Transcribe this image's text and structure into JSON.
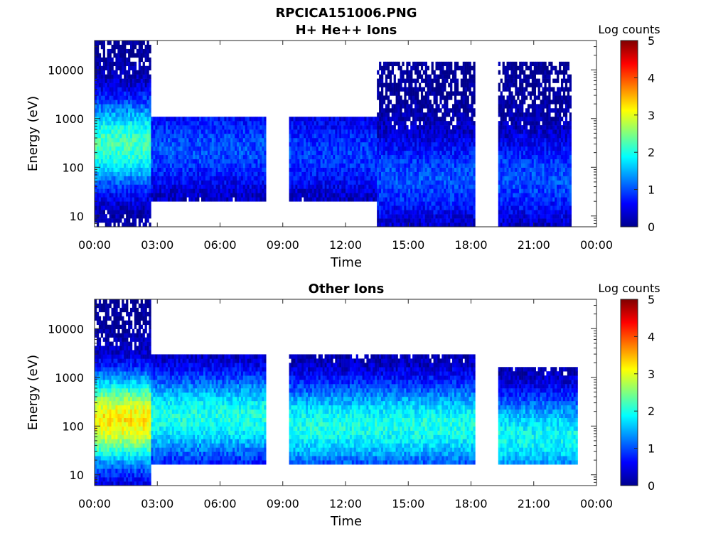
{
  "figure": {
    "title_line1": "RPCICA151006.PNG"
  },
  "chart_data": [
    {
      "type": "heatmap",
      "title": "H+ He++ Ions",
      "xlabel": "Time",
      "ylabel": "Energy (eV)",
      "x_ticks": [
        "00:00",
        "03:00",
        "06:00",
        "09:00",
        "12:00",
        "15:00",
        "18:00",
        "21:00",
        "00:00"
      ],
      "xlim_hours": [
        0,
        24
      ],
      "y_scale": "log",
      "y_ticks": [
        "10",
        "100",
        "1000",
        "10000"
      ],
      "y_tick_values": [
        10,
        100,
        1000,
        10000
      ],
      "ylim": [
        6,
        40000
      ],
      "colorbar": {
        "label": "Log counts",
        "ticks": [
          "0",
          "1",
          "2",
          "3",
          "4",
          "5"
        ],
        "range": [
          0,
          5
        ],
        "colormap": "jet"
      },
      "data_gaps_hours": [
        [
          8.2,
          9.3
        ],
        [
          18.2,
          19.3
        ]
      ],
      "regions": [
        {
          "t0": 0.0,
          "t1": 2.7,
          "e0": 6,
          "e1": 40000,
          "peak_log_counts": 2.2,
          "peak_energy": 300,
          "note_energy": "broad"
        },
        {
          "t0": 2.7,
          "t1": 8.2,
          "e0": 20,
          "e1": 1000,
          "peak_log_counts": 1.0,
          "peak_energy": 250
        },
        {
          "t0": 9.3,
          "t1": 13.5,
          "e0": 20,
          "e1": 1000,
          "peak_log_counts": 0.9,
          "peak_energy": 200
        },
        {
          "t0": 13.5,
          "t1": 18.2,
          "e0": 6,
          "e1": 15000,
          "peak_log_counts": 1.0,
          "peak_energy": 60
        },
        {
          "t0": 19.3,
          "t1": 22.8,
          "e0": 6,
          "e1": 15000,
          "peak_log_counts": 1.0,
          "peak_energy": 60
        }
      ]
    },
    {
      "type": "heatmap",
      "title": "Other Ions",
      "xlabel": "Time",
      "ylabel": "Energy (eV)",
      "x_ticks": [
        "00:00",
        "03:00",
        "06:00",
        "09:00",
        "12:00",
        "15:00",
        "18:00",
        "21:00",
        "00:00"
      ],
      "xlim_hours": [
        0,
        24
      ],
      "y_scale": "log",
      "y_ticks": [
        "10",
        "100",
        "1000",
        "10000"
      ],
      "y_tick_values": [
        10,
        100,
        1000,
        10000
      ],
      "ylim": [
        6,
        40000
      ],
      "colorbar": {
        "label": "Log counts",
        "ticks": [
          "0",
          "1",
          "2",
          "3",
          "4",
          "5"
        ],
        "range": [
          0,
          5
        ],
        "colormap": "jet"
      },
      "data_gaps_hours": [
        [
          8.2,
          9.3
        ],
        [
          18.2,
          19.3
        ]
      ],
      "regions": [
        {
          "t0": 0.0,
          "t1": 2.7,
          "e0": 6,
          "e1": 40000,
          "peak_log_counts": 3.2,
          "peak_energy": 130
        },
        {
          "t0": 2.7,
          "t1": 8.2,
          "e0": 15,
          "e1": 3000,
          "peak_log_counts": 2.0,
          "peak_energy": 150
        },
        {
          "t0": 9.3,
          "t1": 18.2,
          "e0": 15,
          "e1": 3000,
          "peak_log_counts": 2.0,
          "peak_energy": 100
        },
        {
          "t0": 19.3,
          "t1": 23.1,
          "e0": 15,
          "e1": 1500,
          "peak_log_counts": 1.9,
          "peak_energy": 60
        }
      ]
    }
  ]
}
